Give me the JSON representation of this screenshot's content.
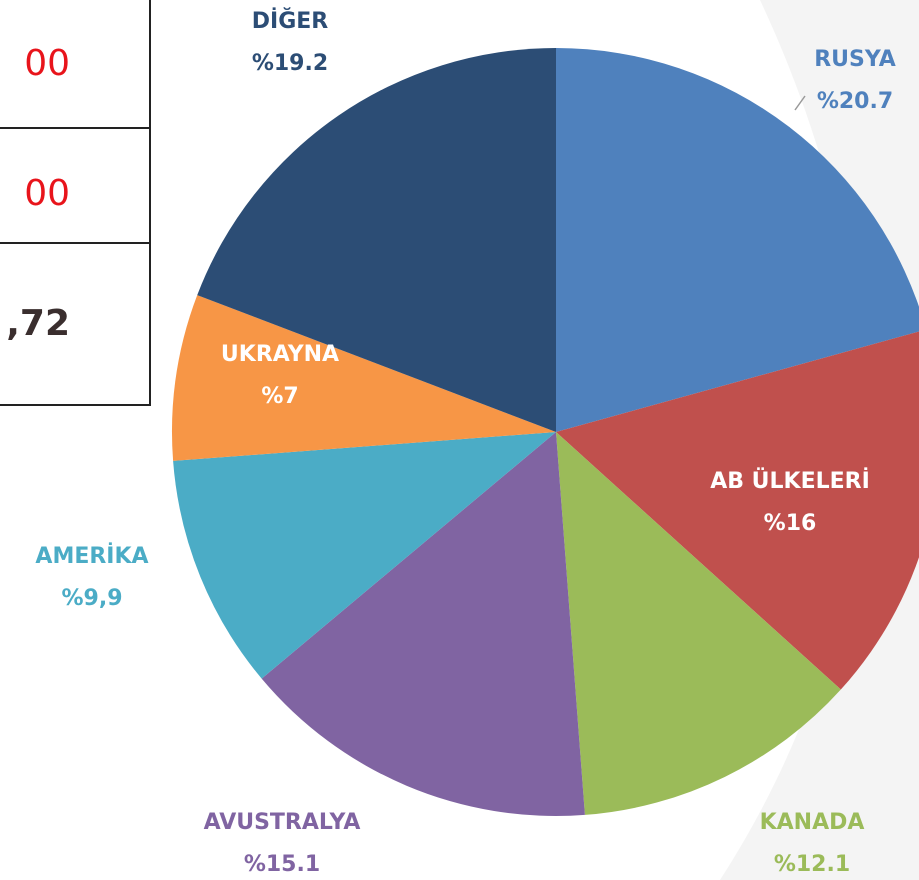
{
  "table": {
    "rows": [
      [
        "00"
      ],
      [
        "00"
      ],
      [
        ",72"
      ]
    ],
    "row_colors": [
      "#e8141b",
      "#e8141b",
      "#3a2e2e"
    ]
  },
  "chart_data": {
    "type": "pie",
    "categories": [
      "RUSYA",
      "AB ÜLKELERİ",
      "KANADA",
      "AVUSTRALYA",
      "AMERİKA",
      "UKRAYNA",
      "DİĞER"
    ],
    "values": [
      20.7,
      16,
      12.1,
      15.1,
      9.9,
      7,
      19.2
    ],
    "value_labels": [
      "%20.7",
      "%16",
      "%12.1",
      "%15.1",
      "%9,9",
      "%7",
      "%19.2"
    ],
    "colors": [
      "#4f81bd",
      "#c0504d",
      "#9bbb59",
      "#8064a2",
      "#4bacc6",
      "#f79646",
      "#2c4d75"
    ],
    "label_colors": [
      "#4f81bd",
      "#ffffff",
      "#9bbb59",
      "#8064a2",
      "#4bacc6",
      "#ffffff",
      "#2c4d75"
    ]
  }
}
